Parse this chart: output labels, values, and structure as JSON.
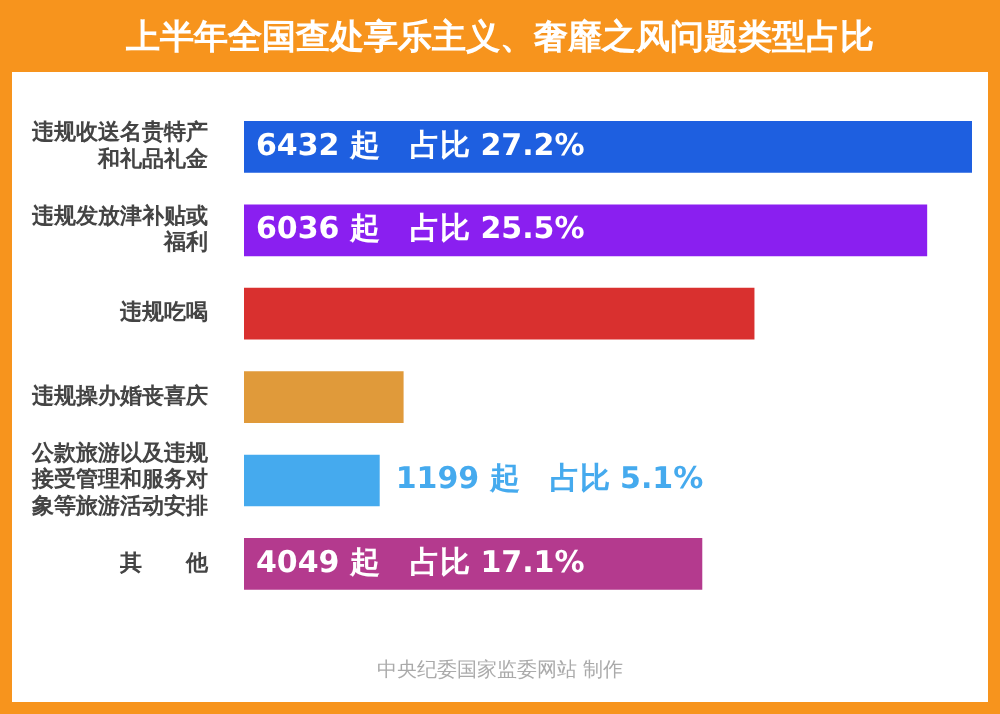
{
  "chart_data": {
    "type": "bar",
    "orientation": "horizontal",
    "title": "上半年全国查处享乐主义、奢靡之风问题类型占比",
    "categories": [
      "违规收送名贵特产和礼品礼金",
      "违规发放津补贴或福利",
      "违规吃喝",
      "违规操办婚丧喜庆",
      "公款旅游以及违规接受管理和服务对象等旅游活动安排",
      "其　　他"
    ],
    "values": [
      6432,
      6036,
      4510,
      1410,
      1199,
      4049
    ],
    "colors": [
      "#1e5fe0",
      "#8a1ff0",
      "#d9302f",
      "#e09a3a",
      "#45aaee",
      "#b43a8e"
    ],
    "value_labels": [
      "6432 起　占比 27.2%",
      "6036 起　占比 25.5%",
      null,
      null,
      "1199 起　占比 5.1%",
      "4049 起　占比 17.1%"
    ],
    "annotations": [
      "中央纪委国家监委网站 制作"
    ],
    "legend": false
  }
}
